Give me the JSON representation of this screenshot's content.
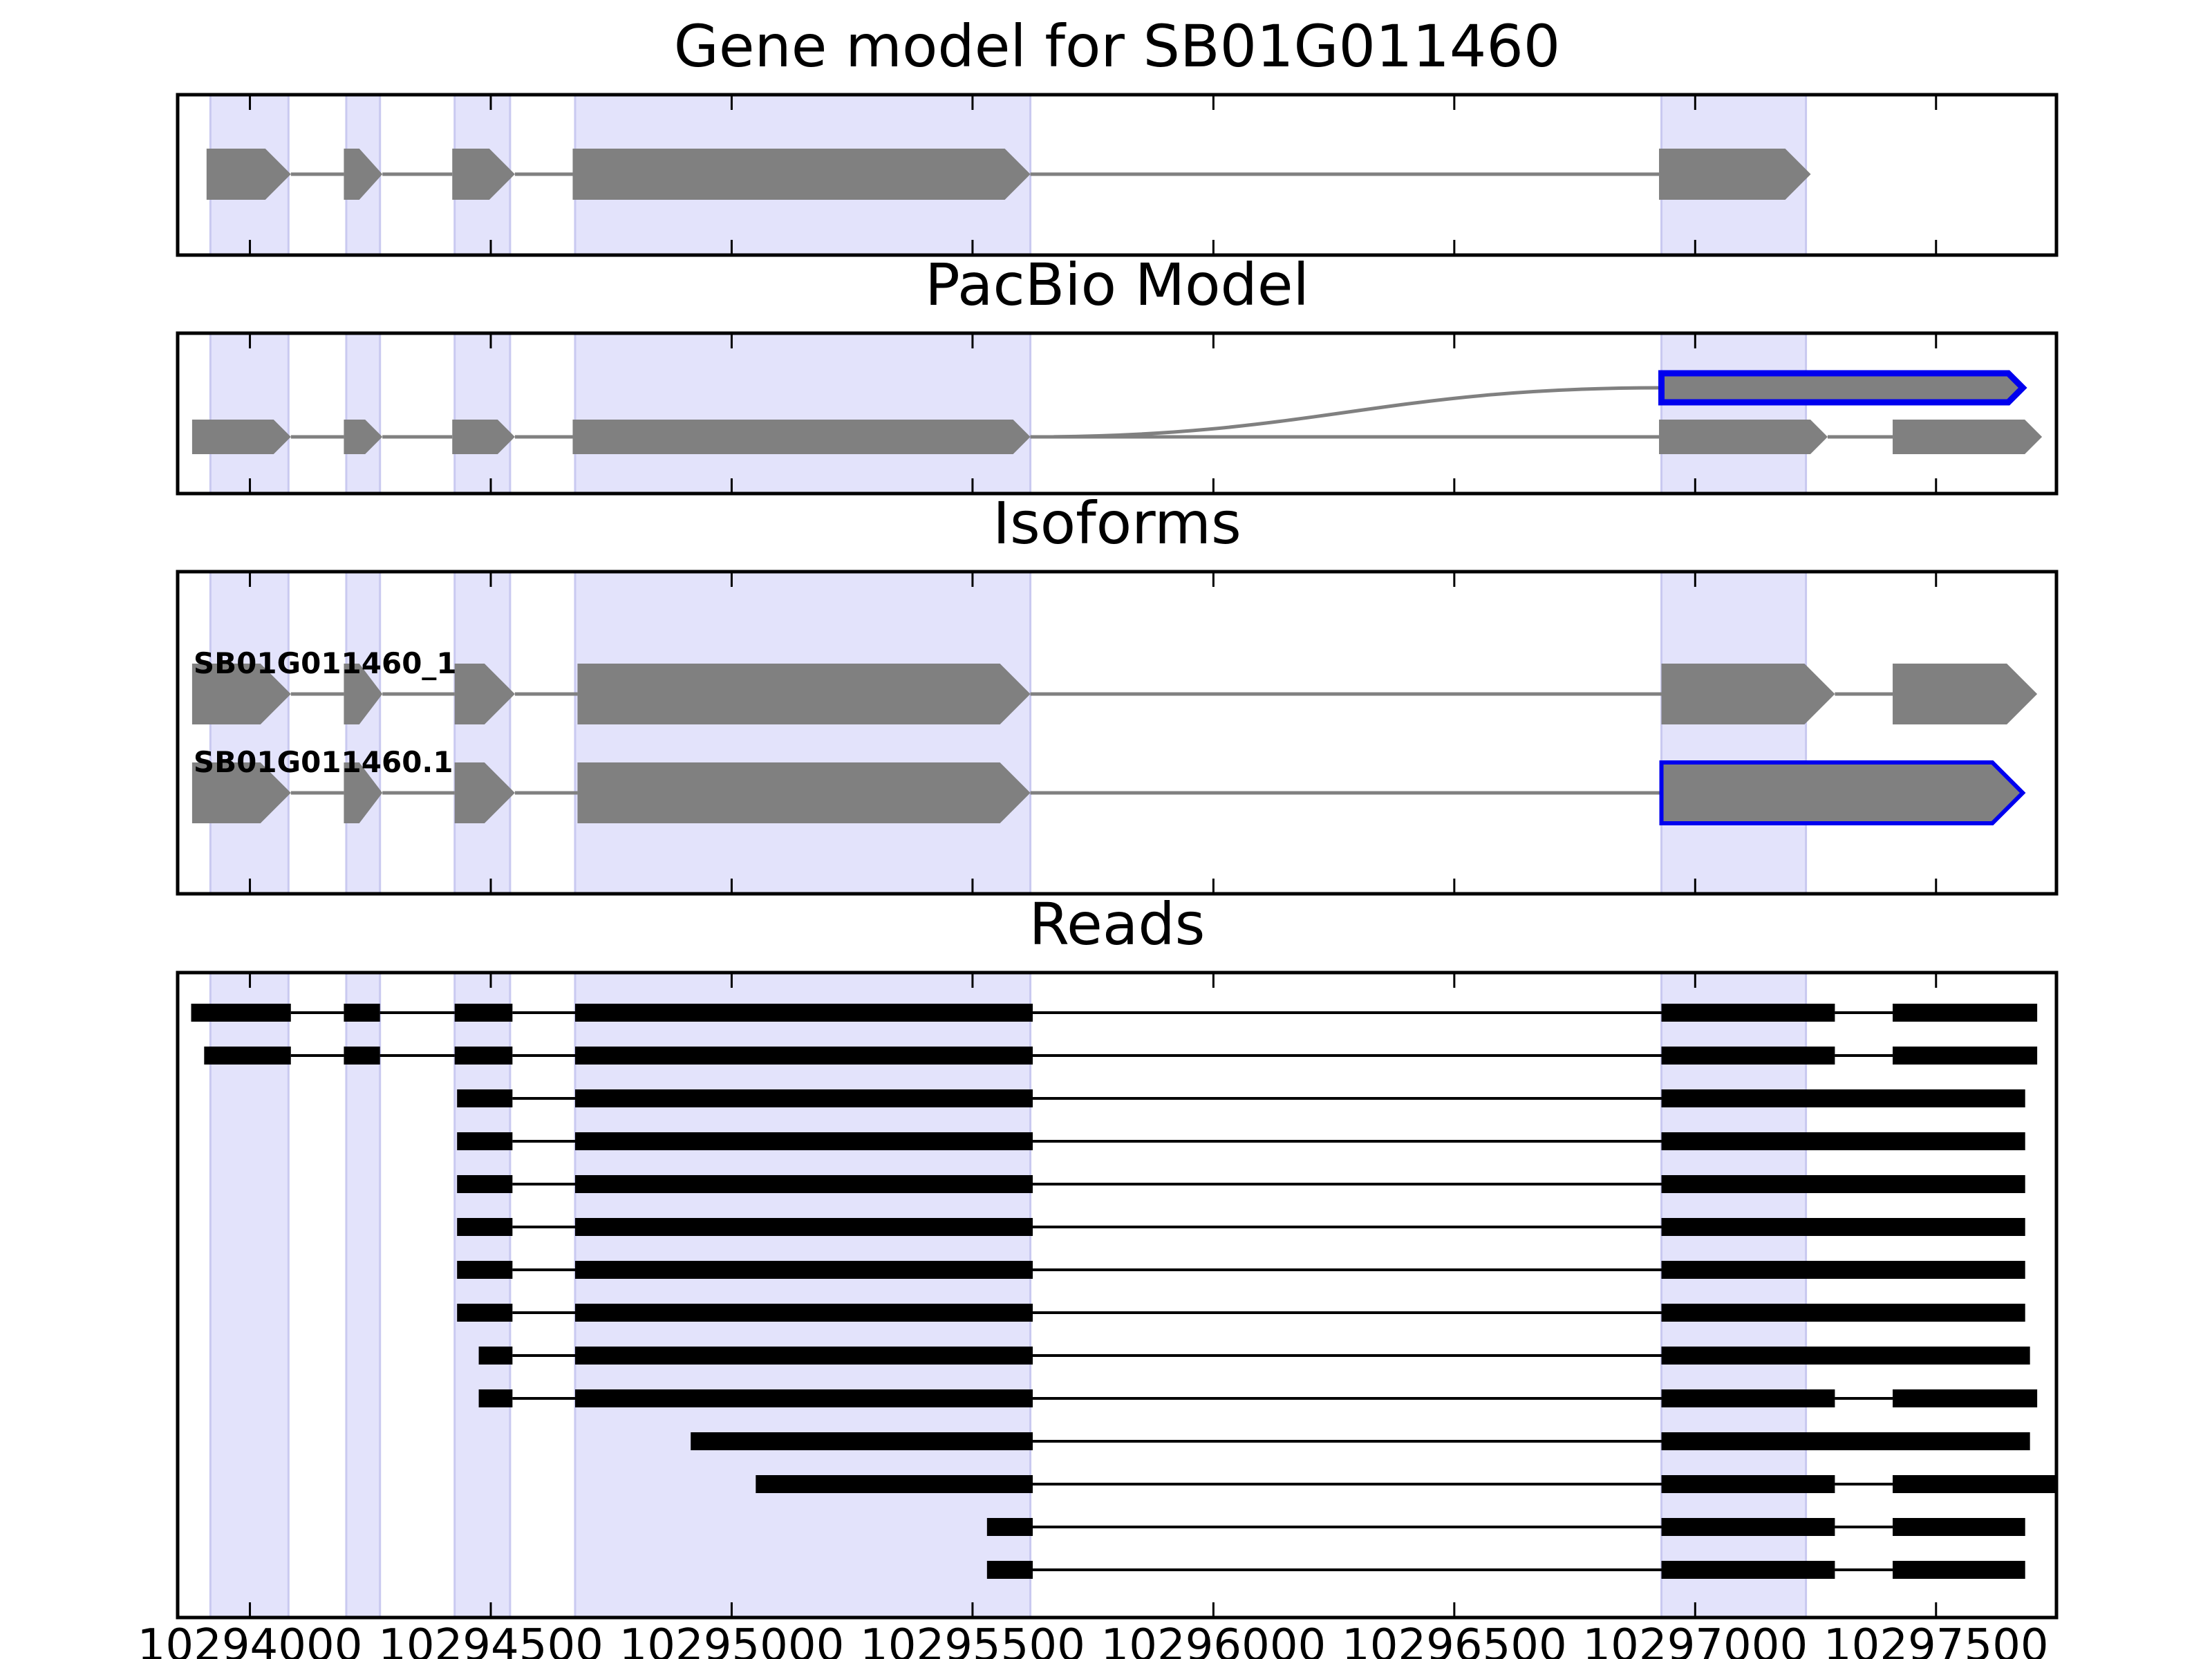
{
  "figure": {
    "panel_titles": [
      "Gene model for SB01G011460",
      "PacBio Model",
      "Isoforms",
      "Reads"
    ],
    "exon_shade_color": "#e3e3fb",
    "exon_shade_edge_color": "#c9c9f0",
    "feature_fill_color": "#808080",
    "highlight_color": "#0000ee",
    "read_color": "#000000",
    "intron_color": "#808080"
  },
  "chart_data": {
    "type": "gene-structure",
    "x_axis": {
      "range": [
        10293850,
        10297750
      ],
      "ticks": [
        10294000,
        10294500,
        10295000,
        10295500,
        10296000,
        10296500,
        10297000,
        10297500
      ],
      "tick_labels": [
        "10294000",
        "10294500",
        "10295000",
        "10295500",
        "10296000",
        "10296500",
        "10297000",
        "10297500"
      ]
    },
    "shaded_exon_regions": [
      [
        10293918,
        10294080
      ],
      [
        10294200,
        10294270
      ],
      [
        10294425,
        10294540
      ],
      [
        10294675,
        10295620
      ],
      [
        10296930,
        10297230
      ]
    ],
    "gene_model": {
      "title": "Gene model for SB01G011460",
      "exons": [
        [
          10293910,
          10294085
        ],
        [
          10294195,
          10294275
        ],
        [
          10294420,
          10294550
        ],
        [
          10294670,
          10295620
        ],
        [
          10296925,
          10297240
        ]
      ]
    },
    "pacbio_model": {
      "title": "PacBio Model",
      "tracks": [
        {
          "highlighted": false,
          "exons": [
            [
              10293880,
              10294085
            ],
            [
              10294195,
              10294275
            ],
            [
              10294420,
              10294550
            ],
            [
              10294670,
              10295620
            ],
            [
              10296925,
              10297275
            ],
            [
              10297410,
              10297720
            ]
          ]
        }
      ],
      "highlighted_feature": {
        "exon": [
          10296930,
          10297680
        ],
        "joins_from": 10295620
      }
    },
    "isoforms": {
      "title": "Isoforms",
      "tracks": [
        {
          "name": "SB01G011460_1",
          "exons": [
            [
              10293880,
              10294085
            ],
            [
              10294195,
              10294275
            ],
            [
              10294425,
              10294550
            ],
            [
              10294680,
              10295620
            ],
            [
              10296930,
              10297290
            ],
            [
              10297410,
              10297710
            ]
          ],
          "highlighted_exon": -1
        },
        {
          "name": "SB01G011460.1",
          "exons": [
            [
              10293880,
              10294085
            ],
            [
              10294195,
              10294275
            ],
            [
              10294425,
              10294550
            ],
            [
              10294680,
              10295620
            ],
            [
              10296930,
              10297680
            ]
          ],
          "highlighted_exon": 4
        }
      ]
    },
    "reads": {
      "title": "Reads",
      "tracks": [
        [
          [
            10293878,
            10294085
          ],
          [
            10294195,
            10294270
          ],
          [
            10294425,
            10294545
          ],
          [
            10294675,
            10295625
          ],
          [
            10296930,
            10297290
          ],
          [
            10297410,
            10297710
          ]
        ],
        [
          [
            10293905,
            10294085
          ],
          [
            10294195,
            10294270
          ],
          [
            10294425,
            10294545
          ],
          [
            10294675,
            10295625
          ],
          [
            10296930,
            10297290
          ],
          [
            10297410,
            10297710
          ]
        ],
        [
          [
            10294430,
            10294545
          ],
          [
            10294675,
            10295625
          ],
          [
            10296930,
            10297685
          ]
        ],
        [
          [
            10294430,
            10294545
          ],
          [
            10294675,
            10295625
          ],
          [
            10296930,
            10297685
          ]
        ],
        [
          [
            10294430,
            10294545
          ],
          [
            10294675,
            10295625
          ],
          [
            10296930,
            10297685
          ]
        ],
        [
          [
            10294430,
            10294545
          ],
          [
            10294675,
            10295625
          ],
          [
            10296930,
            10297685
          ]
        ],
        [
          [
            10294430,
            10294545
          ],
          [
            10294675,
            10295625
          ],
          [
            10296930,
            10297685
          ]
        ],
        [
          [
            10294430,
            10294545
          ],
          [
            10294675,
            10295625
          ],
          [
            10296930,
            10297685
          ]
        ],
        [
          [
            10294475,
            10294545
          ],
          [
            10294675,
            10295625
          ],
          [
            10296930,
            10297695
          ]
        ],
        [
          [
            10294475,
            10294545
          ],
          [
            10294675,
            10295625
          ],
          [
            10296930,
            10297290
          ],
          [
            10297410,
            10297710
          ]
        ],
        [
          [
            10294915,
            10295625
          ],
          [
            10296930,
            10297695
          ]
        ],
        [
          [
            10295050,
            10295625
          ],
          [
            10296930,
            10297290
          ],
          [
            10297410,
            10297750
          ]
        ],
        [
          [
            10295530,
            10295625
          ],
          [
            10296930,
            10297290
          ],
          [
            10297410,
            10297685
          ]
        ],
        [
          [
            10295530,
            10295625
          ],
          [
            10296930,
            10297290
          ],
          [
            10297410,
            10297685
          ]
        ]
      ]
    }
  }
}
